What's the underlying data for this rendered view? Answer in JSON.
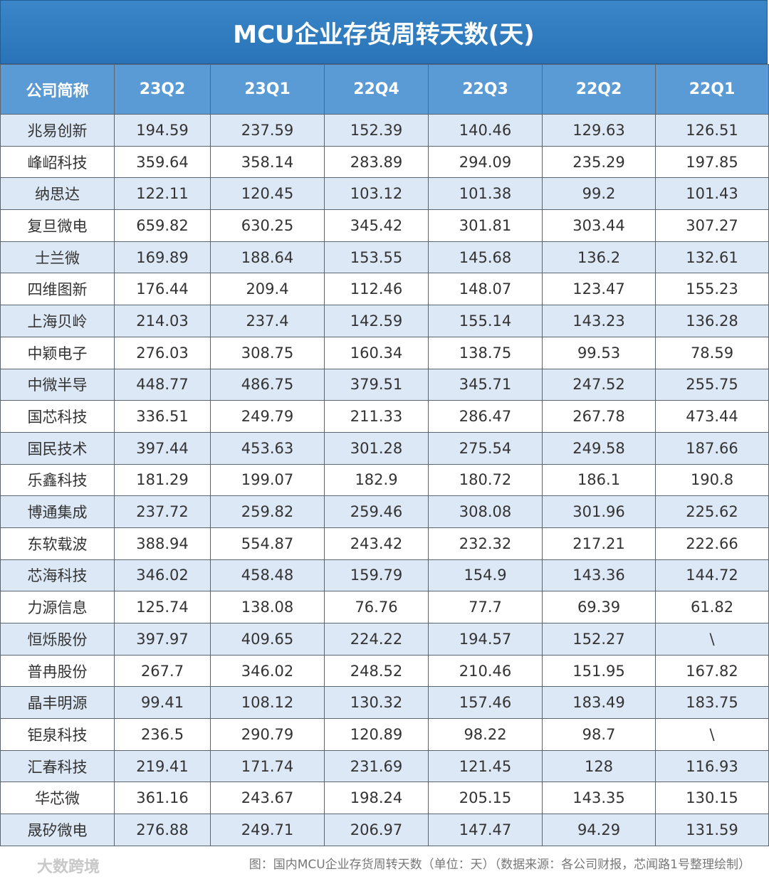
{
  "title": "MCU企业存货周转天数(天)",
  "table": {
    "header": [
      "公司简称",
      "23Q2",
      "23Q1",
      "22Q4",
      "22Q3",
      "22Q2",
      "22Q1"
    ],
    "rows": [
      [
        "兆易创新",
        "194.59",
        "237.59",
        "152.39",
        "140.46",
        "129.63",
        "126.51"
      ],
      [
        "峰岹科技",
        "359.64",
        "358.14",
        "283.89",
        "294.09",
        "235.29",
        "197.85"
      ],
      [
        "纳思达",
        "122.11",
        "120.45",
        "103.12",
        "101.38",
        "99.2",
        "101.43"
      ],
      [
        "复旦微电",
        "659.82",
        "630.25",
        "345.42",
        "301.81",
        "303.44",
        "307.27"
      ],
      [
        "士兰微",
        "169.89",
        "188.64",
        "153.55",
        "145.68",
        "136.2",
        "132.61"
      ],
      [
        "四维图新",
        "176.44",
        "209.4",
        "112.46",
        "148.07",
        "123.47",
        "155.23"
      ],
      [
        "上海贝岭",
        "214.03",
        "237.4",
        "142.59",
        "155.14",
        "143.23",
        "136.28"
      ],
      [
        "中颖电子",
        "276.03",
        "308.75",
        "160.34",
        "138.75",
        "99.53",
        "78.59"
      ],
      [
        "中微半导",
        "448.77",
        "486.75",
        "379.51",
        "345.71",
        "247.52",
        "255.75"
      ],
      [
        "国芯科技",
        "336.51",
        "249.79",
        "211.33",
        "286.47",
        "267.78",
        "473.44"
      ],
      [
        "国民技术",
        "397.44",
        "453.63",
        "301.28",
        "275.54",
        "249.58",
        "187.66"
      ],
      [
        "乐鑫科技",
        "181.29",
        "199.07",
        "182.9",
        "180.72",
        "186.1",
        "190.8"
      ],
      [
        "博通集成",
        "237.72",
        "259.82",
        "259.46",
        "308.08",
        "301.96",
        "225.62"
      ],
      [
        "东软载波",
        "388.94",
        "554.87",
        "243.42",
        "232.32",
        "217.21",
        "222.66"
      ],
      [
        "芯海科技",
        "346.02",
        "458.48",
        "159.79",
        "154.9",
        "143.36",
        "144.72"
      ],
      [
        "力源信息",
        "125.74",
        "138.08",
        "76.76",
        "77.7",
        "69.39",
        "61.82"
      ],
      [
        "恒烁股份",
        "397.97",
        "409.65",
        "224.22",
        "194.57",
        "152.27",
        "\\"
      ],
      [
        "普冉股份",
        "267.7",
        "346.02",
        "248.52",
        "210.46",
        "151.95",
        "167.82"
      ],
      [
        "晶丰明源",
        "99.41",
        "108.12",
        "130.32",
        "157.46",
        "183.49",
        "183.75"
      ],
      [
        "钜泉科技",
        "236.5",
        "290.79",
        "120.89",
        "98.22",
        "98.7",
        "\\"
      ],
      [
        "汇春科技",
        "219.41",
        "171.74",
        "231.69",
        "121.45",
        "128",
        "116.93"
      ],
      [
        "华芯微",
        "361.16",
        "243.67",
        "198.24",
        "205.15",
        "143.35",
        "130.15"
      ],
      [
        "晟矽微电",
        "276.88",
        "249.71",
        "206.97",
        "147.47",
        "94.29",
        "131.59"
      ]
    ]
  },
  "footer": {
    "logo": "大数跨境",
    "caption": "图：国内MCU企业存货周转天数（单位：天）（数据来源：各公司财报，芯闻路1号整理绘制）"
  }
}
